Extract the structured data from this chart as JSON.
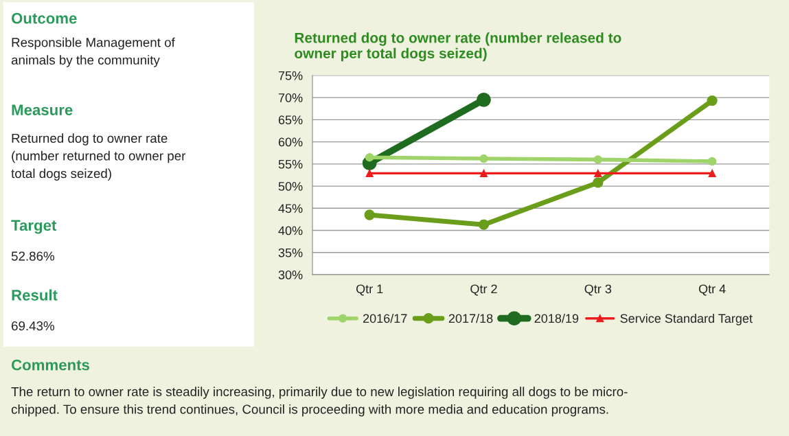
{
  "chart_data": {
    "type": "line",
    "title": "Returned dog to owner rate (number released to\nowner per total dogs seized)",
    "categories": [
      "Qtr 1",
      "Qtr 2",
      "Qtr 3",
      "Qtr 4"
    ],
    "series": [
      {
        "name": "2016/17",
        "color": "#9fd46a",
        "values": [
          56.5,
          56.2,
          56.0,
          55.6
        ],
        "marker": "circle"
      },
      {
        "name": "2017/18",
        "color": "#6a9e1a",
        "values": [
          43.5,
          41.3,
          50.8,
          69.3
        ],
        "marker": "circle"
      },
      {
        "name": "2018/19",
        "color": "#1f6b1f",
        "values": [
          55.2,
          69.5,
          null,
          null
        ],
        "marker": "circle"
      },
      {
        "name": "Service Standard Target",
        "color": "#ee1c1c",
        "values": [
          52.9,
          52.9,
          52.9,
          52.9
        ],
        "marker": "triangle"
      }
    ],
    "ylim": [
      30,
      75
    ],
    "yticks": [
      {
        "value": 30,
        "label": "30%"
      },
      {
        "value": 35,
        "label": "35%"
      },
      {
        "value": 40,
        "label": "40%"
      },
      {
        "value": 45,
        "label": "45%"
      },
      {
        "value": 50,
        "label": "50%"
      },
      {
        "value": 55,
        "label": "55%"
      },
      {
        "value": 60,
        "label": "60%"
      },
      {
        "value": 65,
        "label": "65%"
      },
      {
        "value": 70,
        "label": "70%"
      },
      {
        "value": 75,
        "label": "75%"
      }
    ],
    "grid": "y",
    "legend": "bottom",
    "line_style": "solid",
    "annotations": [
      "Outcome",
      "Responsible Management of\nanimals by the community",
      "Measure",
      "Returned dog to owner rate\n(number returned to owner per\ntotal dogs seized)",
      "Target",
      "52.86%",
      "Result",
      "69.43%",
      "Comments",
      "The return to owner rate is steadily increasing, primarily due to new legislation requiring all dogs to be micro-\nchipped. To ensure this trend continues, Council is proceeding with more media and education programs."
    ]
  }
}
